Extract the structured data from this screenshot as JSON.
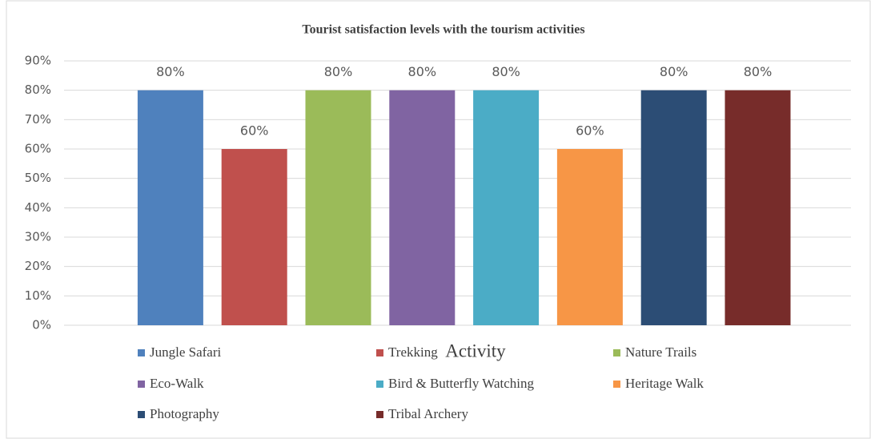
{
  "chart_data": {
    "type": "bar",
    "title": "Tourist satisfaction levels with the tourism activities",
    "x_label": "Activity",
    "series": [
      {
        "name": "Jungle Safari",
        "color": "#4f81bd",
        "values": [
          80
        ],
        "value_labels": [
          "80%"
        ]
      },
      {
        "name": "Trekking",
        "color": "#c0504d",
        "values": [
          60
        ],
        "value_labels": [
          "60%"
        ]
      },
      {
        "name": "Nature Trails",
        "color": "#9bbb59",
        "values": [
          80
        ],
        "value_labels": [
          "80%"
        ]
      },
      {
        "name": "Eco-Walk",
        "color": "#8064a2",
        "values": [
          80
        ],
        "value_labels": [
          "80%"
        ]
      },
      {
        "name": "Bird & Butterfly Watching",
        "color": "#4bacc6",
        "values": [
          80
        ],
        "value_labels": [
          "80%"
        ]
      },
      {
        "name": "Heritage Walk",
        "color": "#f79646",
        "values": [
          60
        ],
        "value_labels": [
          "60%"
        ]
      },
      {
        "name": "Photography",
        "color": "#2c4d75",
        "values": [
          80
        ],
        "value_labels": [
          "80%"
        ]
      },
      {
        "name": "Tribal Archery",
        "color": "#772c2a",
        "values": [
          80
        ],
        "value_labels": [
          "80%"
        ]
      }
    ],
    "ylim": [
      0,
      90
    ],
    "yticks": [
      {
        "value": 0,
        "label": "0%"
      },
      {
        "value": 10,
        "label": "10%"
      },
      {
        "value": 20,
        "label": "20%"
      },
      {
        "value": 30,
        "label": "30%"
      },
      {
        "value": 40,
        "label": "40%"
      },
      {
        "value": 50,
        "label": "50%"
      },
      {
        "value": 60,
        "label": "60%"
      },
      {
        "value": 70,
        "label": "70%"
      },
      {
        "value": 80,
        "label": "80%"
      },
      {
        "value": 90,
        "label": "90%"
      }
    ],
    "grid": true,
    "legend": "bottom"
  }
}
